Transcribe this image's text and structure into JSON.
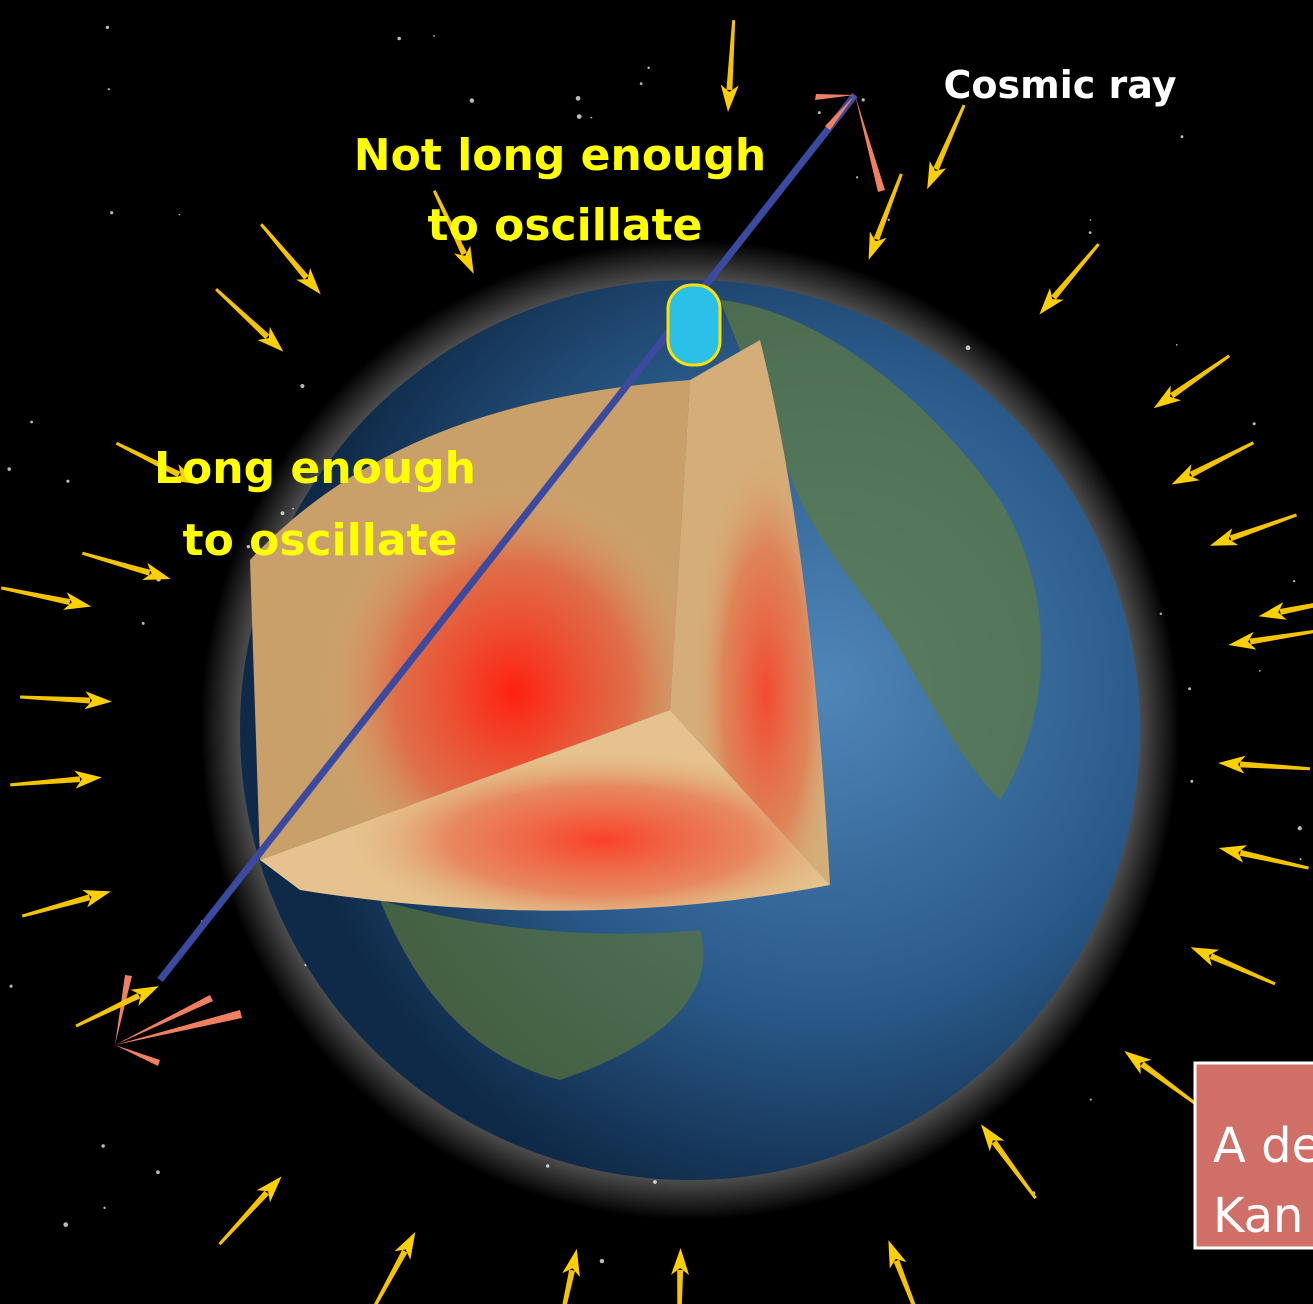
{
  "labels": {
    "cosmic_ray": "Cosmic ray",
    "short_path": [
      "Not long enough",
      "to oscillate"
    ],
    "long_path": [
      "Long enough",
      "to oscillate"
    ]
  },
  "caption_box": [
    "A de",
    "Kan"
  ]
}
